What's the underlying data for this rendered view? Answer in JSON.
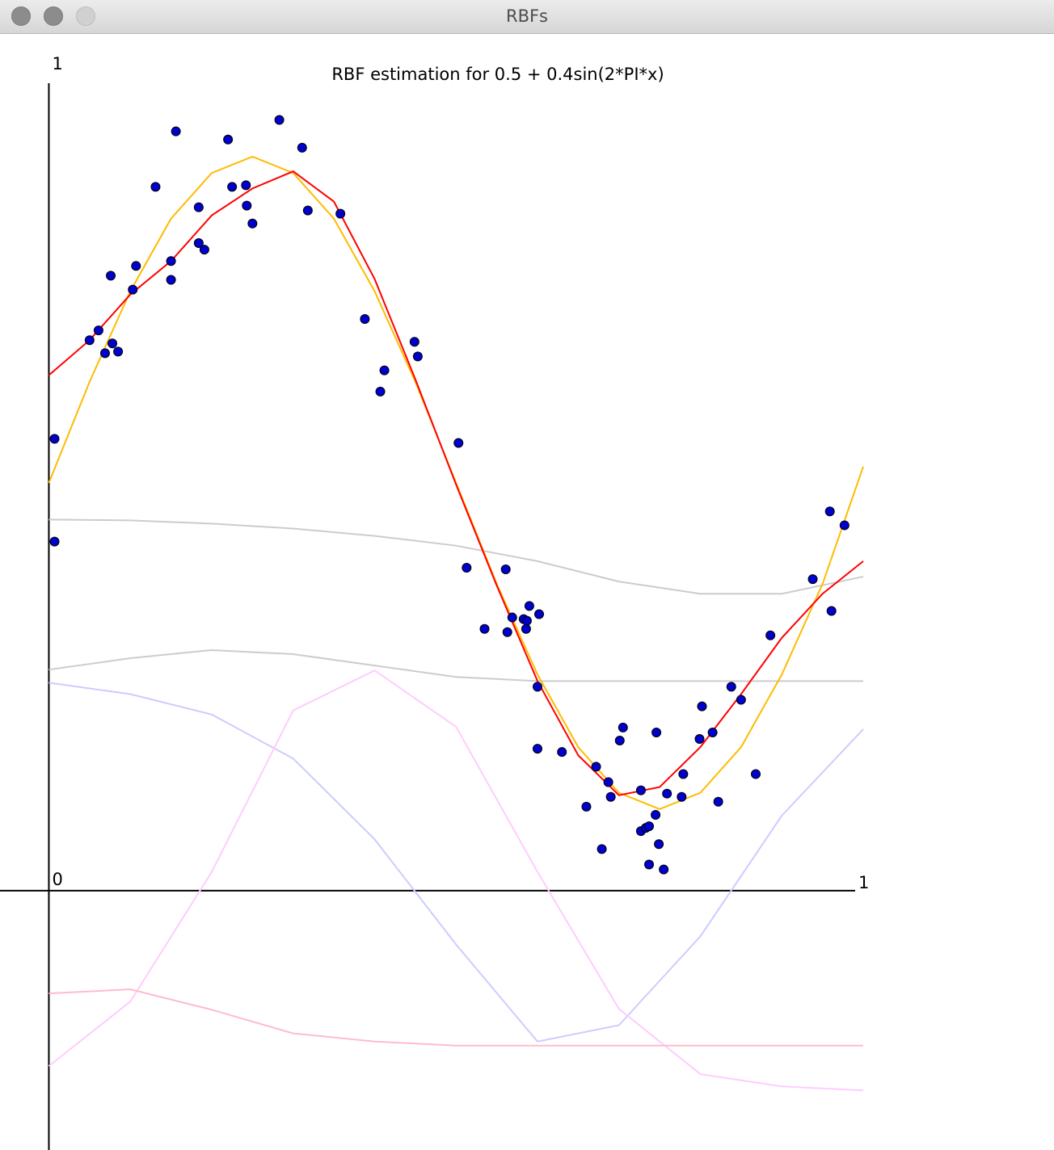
{
  "window": {
    "title": "RBFs"
  },
  "chart_data": {
    "type": "scatter",
    "title": "RBF estimation for 0.5 + 0.4sin(2*PI*x)",
    "xlim": [
      -0.06,
      1
    ],
    "ylim": [
      -0.318,
      1
    ],
    "xticks": [
      1
    ],
    "yticks": [
      0,
      1
    ],
    "grid": false,
    "series": [
      {
        "type": "line",
        "color": "#cccccc",
        "x": [
          0,
          0.1,
          0.2,
          0.3,
          0.4,
          0.5,
          0.6,
          0.7,
          0.8,
          0.9,
          1
        ],
        "values": [
          0.455,
          0.454,
          0.45,
          0.444,
          0.435,
          0.423,
          0.404,
          0.379,
          0.364,
          0.364,
          0.385
        ]
      },
      {
        "type": "line",
        "color": "#cccccc",
        "x": [
          0,
          0.1,
          0.2,
          0.3,
          0.4,
          0.5,
          0.6,
          0.7,
          0.8,
          0.9,
          1
        ],
        "values": [
          0.271,
          0.285,
          0.295,
          0.29,
          0.276,
          0.262,
          0.257,
          0.257,
          0.257,
          0.257,
          0.257
        ]
      },
      {
        "type": "line",
        "color": "#ccccff",
        "x": [
          0,
          0.1,
          0.2,
          0.3,
          0.4,
          0.5,
          0.6,
          0.7,
          0.8,
          0.9,
          1
        ],
        "values": [
          0.255,
          0.241,
          0.216,
          0.162,
          0.063,
          -0.066,
          -0.185,
          -0.165,
          -0.056,
          0.092,
          0.198
        ]
      },
      {
        "type": "line",
        "color": "#ffccff",
        "x": [
          0,
          0.1,
          0.2,
          0.3,
          0.4,
          0.5,
          0.6,
          0.7,
          0.8,
          0.9,
          1
        ],
        "values": [
          -0.215,
          -0.136,
          0.023,
          0.221,
          0.27,
          0.201,
          0.023,
          -0.145,
          -0.225,
          -0.24,
          -0.245
        ]
      },
      {
        "type": "line",
        "color": "#ffbbcc",
        "x": [
          0,
          0.1,
          0.2,
          0.3,
          0.4,
          0.5,
          0.6,
          0.7,
          0.8,
          0.9,
          1
        ],
        "values": [
          -0.126,
          -0.121,
          -0.146,
          -0.175,
          -0.185,
          -0.19,
          -0.19,
          -0.19,
          -0.19,
          -0.19,
          -0.19
        ]
      },
      {
        "type": "line",
        "color": "#ffbb00",
        "x": [
          0,
          0.05,
          0.1,
          0.15,
          0.2,
          0.25,
          0.3,
          0.35,
          0.4,
          0.45,
          0.5,
          0.55,
          0.6,
          0.65,
          0.7,
          0.75,
          0.8,
          0.85,
          0.9,
          0.95,
          1
        ],
        "values": [
          0.5,
          0.624,
          0.735,
          0.824,
          0.88,
          0.9,
          0.88,
          0.824,
          0.735,
          0.624,
          0.5,
          0.376,
          0.265,
          0.176,
          0.12,
          0.1,
          0.12,
          0.176,
          0.265,
          0.376,
          0.52
        ]
      },
      {
        "type": "line",
        "color": "#ff0000",
        "x": [
          0,
          0.05,
          0.1,
          0.15,
          0.2,
          0.25,
          0.3,
          0.35,
          0.4,
          0.45,
          0.5,
          0.55,
          0.6,
          0.65,
          0.7,
          0.75,
          0.8,
          0.85,
          0.9,
          0.95,
          1
        ],
        "values": [
          0.632,
          0.675,
          0.731,
          0.772,
          0.828,
          0.861,
          0.882,
          0.845,
          0.75,
          0.627,
          0.498,
          0.374,
          0.257,
          0.166,
          0.117,
          0.127,
          0.176,
          0.241,
          0.31,
          0.364,
          0.404
        ]
      },
      {
        "type": "scatter",
        "color": "#0000cc",
        "x": [
          0.007,
          0.007,
          0.05,
          0.061,
          0.069,
          0.078,
          0.085,
          0.076,
          0.103,
          0.107,
          0.131,
          0.15,
          0.15,
          0.156,
          0.184,
          0.184,
          0.191,
          0.22,
          0.225,
          0.242,
          0.243,
          0.25,
          0.283,
          0.311,
          0.318,
          0.358,
          0.388,
          0.407,
          0.412,
          0.449,
          0.453,
          0.503,
          0.513,
          0.535,
          0.561,
          0.563,
          0.569,
          0.583,
          0.587,
          0.586,
          0.59,
          0.602,
          0.6,
          0.6,
          0.63,
          0.66,
          0.672,
          0.679,
          0.687,
          0.69,
          0.701,
          0.705,
          0.727,
          0.727,
          0.733,
          0.737,
          0.745,
          0.746,
          0.749,
          0.737,
          0.755,
          0.759,
          0.779,
          0.777,
          0.799,
          0.802,
          0.815,
          0.822,
          0.838,
          0.85,
          0.868,
          0.886,
          0.938,
          0.961,
          0.959,
          0.977
        ],
        "values": [
          0.554,
          0.428,
          0.675,
          0.687,
          0.659,
          0.671,
          0.661,
          0.754,
          0.737,
          0.766,
          0.863,
          0.772,
          0.749,
          0.931,
          0.838,
          0.794,
          0.786,
          0.921,
          0.863,
          0.865,
          0.84,
          0.818,
          0.945,
          0.911,
          0.834,
          0.83,
          0.701,
          0.612,
          0.638,
          0.673,
          0.655,
          0.549,
          0.396,
          0.321,
          0.394,
          0.317,
          0.335,
          0.333,
          0.331,
          0.321,
          0.349,
          0.339,
          0.25,
          0.174,
          0.17,
          0.103,
          0.152,
          0.051,
          0.133,
          0.115,
          0.184,
          0.2,
          0.123,
          0.073,
          0.077,
          0.079,
          0.093,
          0.194,
          0.057,
          0.032,
          0.026,
          0.119,
          0.143,
          0.115,
          0.186,
          0.226,
          0.194,
          0.109,
          0.25,
          0.234,
          0.143,
          0.313,
          0.382,
          0.343,
          0.465,
          0.448
        ]
      }
    ]
  }
}
